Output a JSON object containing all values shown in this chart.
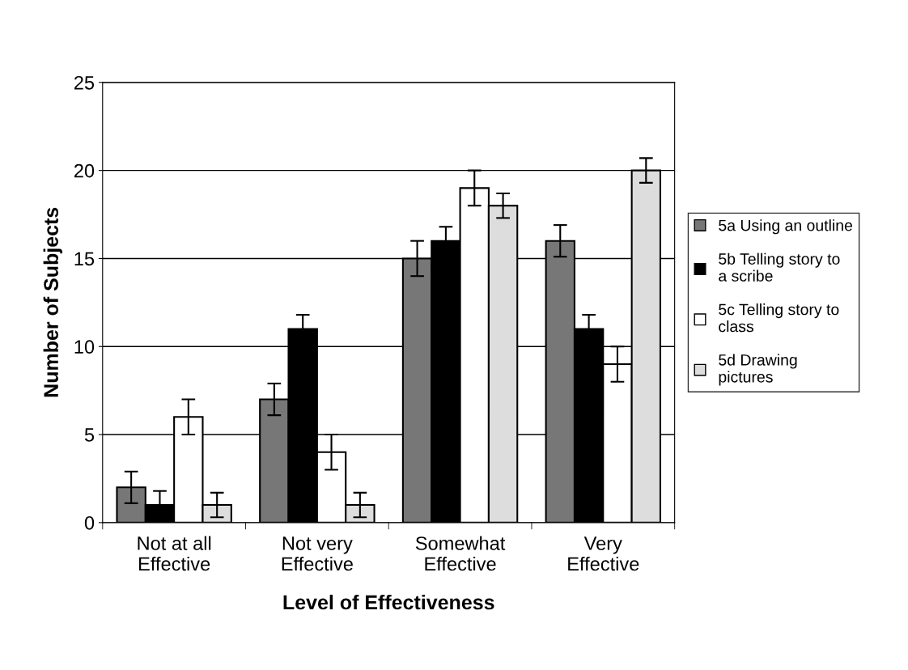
{
  "chart_data": {
    "type": "bar",
    "xlabel": "Level of Effectiveness",
    "ylabel": "Number of Subjects",
    "categories": [
      "Not at all\nEffective",
      "Not very\nEffective",
      "Somewhat\nEffective",
      "Very\nEffective"
    ],
    "series": [
      {
        "name": "5a Using an outline",
        "color": "#777777",
        "values": [
          2,
          7,
          15,
          16
        ],
        "errors": [
          0.9,
          0.9,
          1,
          0.9
        ]
      },
      {
        "name": "5b Telling story to\na scribe",
        "color": "#000000",
        "values": [
          1,
          11,
          16,
          11
        ],
        "errors": [
          0.8,
          0.8,
          0.8,
          0.8
        ]
      },
      {
        "name": "5c Telling story to\nclass",
        "color": "#ffffff",
        "values": [
          6,
          4,
          19,
          9
        ],
        "errors": [
          1,
          1,
          1,
          1
        ]
      },
      {
        "name": "5d Drawing\npictures",
        "color": "#dddddd",
        "values": [
          1,
          1,
          18,
          20
        ],
        "errors": [
          0.7,
          0.7,
          0.7,
          0.7
        ]
      }
    ],
    "ylim": [
      0,
      25
    ],
    "yticks": [
      0,
      5,
      10,
      15,
      20,
      25
    ],
    "grid": "y",
    "legend": "right"
  }
}
